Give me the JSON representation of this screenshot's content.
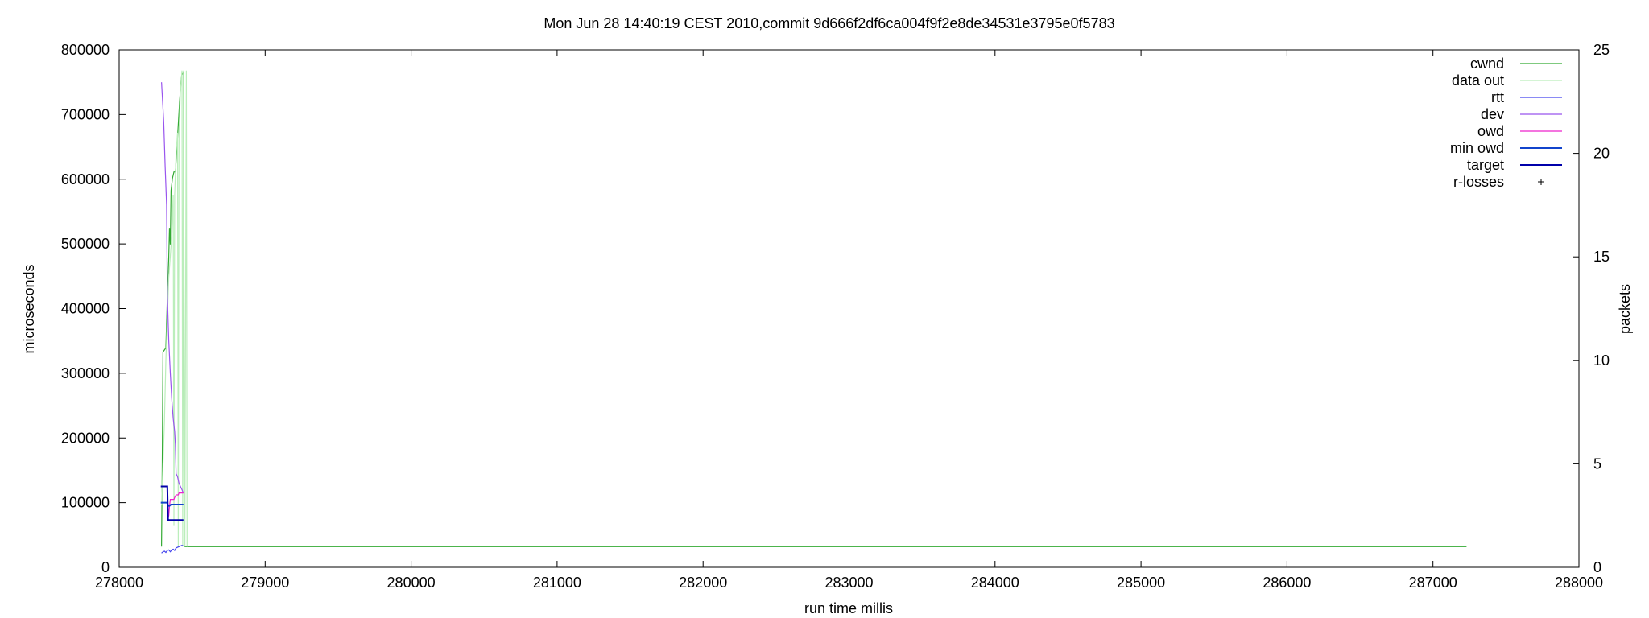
{
  "chart_data": {
    "type": "line",
    "title": "Mon Jun 28 14:40:19 CEST 2010,commit 9d666f2df6ca004f9f2e8de34531e3795e0f5783",
    "xlabel": "run time millis",
    "ylabel": "microseconds",
    "y2label": "packets",
    "xlim": [
      278000,
      288000
    ],
    "ylim": [
      0,
      800000
    ],
    "y2lim": [
      0,
      25
    ],
    "x_ticks": [
      "278000",
      "279000",
      "280000",
      "281000",
      "282000",
      "283000",
      "284000",
      "285000",
      "286000",
      "287000",
      "288000"
    ],
    "y_ticks": [
      "0",
      "100000",
      "200000",
      "300000",
      "400000",
      "500000",
      "600000",
      "700000",
      "800000"
    ],
    "y2_ticks": [
      "0",
      "5",
      "10",
      "15",
      "20",
      "25"
    ],
    "grid": false,
    "legend_position": "top-right",
    "series": [
      {
        "name": "cwnd",
        "color": "#33aa33",
        "axis": "y2",
        "points": [
          [
            278290,
            1
          ],
          [
            278295,
            5
          ],
          [
            278300,
            10.4
          ],
          [
            278320,
            10.6
          ],
          [
            278330,
            13
          ],
          [
            278340,
            15
          ],
          [
            278345,
            16.4
          ],
          [
            278350,
            15.6
          ],
          [
            278355,
            18.2
          ],
          [
            278365,
            18.8
          ],
          [
            278375,
            19.1
          ],
          [
            278385,
            19.1
          ],
          [
            278395,
            20.2
          ],
          [
            278405,
            21.4
          ],
          [
            278415,
            22.6
          ],
          [
            278425,
            23.6
          ],
          [
            278430,
            23.8
          ],
          [
            278440,
            23.9
          ],
          [
            278445,
            1
          ],
          [
            279000,
            1
          ],
          [
            285000,
            1
          ],
          [
            287230,
            1
          ]
        ]
      },
      {
        "name": "data out",
        "color": "#bbeebb",
        "axis": "y2",
        "points": [
          [
            278290,
            3
          ],
          [
            278310,
            7
          ],
          [
            278320,
            10
          ],
          [
            278340,
            14
          ],
          [
            278360,
            16
          ],
          [
            278370,
            18
          ],
          [
            278375,
            2
          ],
          [
            278380,
            18
          ],
          [
            278390,
            20
          ],
          [
            278400,
            21
          ],
          [
            278405,
            1
          ],
          [
            278410,
            21
          ],
          [
            278420,
            23
          ],
          [
            278430,
            24
          ],
          [
            278435,
            1
          ],
          [
            278440,
            24
          ],
          [
            278450,
            1
          ],
          [
            278460,
            24
          ],
          [
            278465,
            1
          ]
        ]
      },
      {
        "name": "rtt",
        "color": "#4444ee",
        "axis": "y",
        "points": [
          [
            278290,
            22000
          ],
          [
            278300,
            24000
          ],
          [
            278310,
            25000
          ],
          [
            278320,
            23000
          ],
          [
            278330,
            26000
          ],
          [
            278340,
            27000
          ],
          [
            278350,
            24000
          ],
          [
            278360,
            27000
          ],
          [
            278370,
            28000
          ],
          [
            278380,
            26000
          ],
          [
            278390,
            30000
          ],
          [
            278400,
            31000
          ],
          [
            278410,
            32000
          ],
          [
            278420,
            33000
          ],
          [
            278430,
            34000
          ],
          [
            278440,
            33000
          ]
        ]
      },
      {
        "name": "dev",
        "color": "#9955ee",
        "axis": "y",
        "points": [
          [
            278290,
            750000
          ],
          [
            278305,
            690000
          ],
          [
            278315,
            620000
          ],
          [
            278325,
            560000
          ],
          [
            278330,
            420000
          ],
          [
            278340,
            350000
          ],
          [
            278350,
            300000
          ],
          [
            278360,
            260000
          ],
          [
            278370,
            230000
          ],
          [
            278380,
            210000
          ],
          [
            278385,
            190000
          ],
          [
            278390,
            145000
          ],
          [
            278400,
            140000
          ],
          [
            278410,
            130000
          ],
          [
            278420,
            125000
          ],
          [
            278430,
            120000
          ],
          [
            278440,
            115000
          ]
        ]
      },
      {
        "name": "owd",
        "color": "#ee22cc",
        "axis": "y",
        "points": [
          [
            278335,
            75000
          ],
          [
            278340,
            80000
          ],
          [
            278345,
            95000
          ],
          [
            278350,
            105000
          ],
          [
            278375,
            105000
          ],
          [
            278380,
            108000
          ],
          [
            278390,
            112000
          ],
          [
            278405,
            112000
          ],
          [
            278410,
            115000
          ],
          [
            278440,
            115000
          ]
        ]
      },
      {
        "name": "min owd",
        "color": "#1144cc",
        "axis": "y",
        "points": [
          [
            278285,
            100000
          ],
          [
            278330,
            100000
          ],
          [
            278335,
            95000
          ],
          [
            278345,
            95000
          ],
          [
            278355,
            97000
          ],
          [
            278440,
            97000
          ]
        ]
      },
      {
        "name": "target",
        "color": "#0000aa",
        "axis": "y",
        "points": [
          [
            278285,
            125000
          ],
          [
            278330,
            125000
          ],
          [
            278335,
            73000
          ],
          [
            278440,
            73000
          ]
        ]
      },
      {
        "name": "r-losses",
        "color": "#000000",
        "axis": "y",
        "marker": "+",
        "points": []
      }
    ]
  }
}
